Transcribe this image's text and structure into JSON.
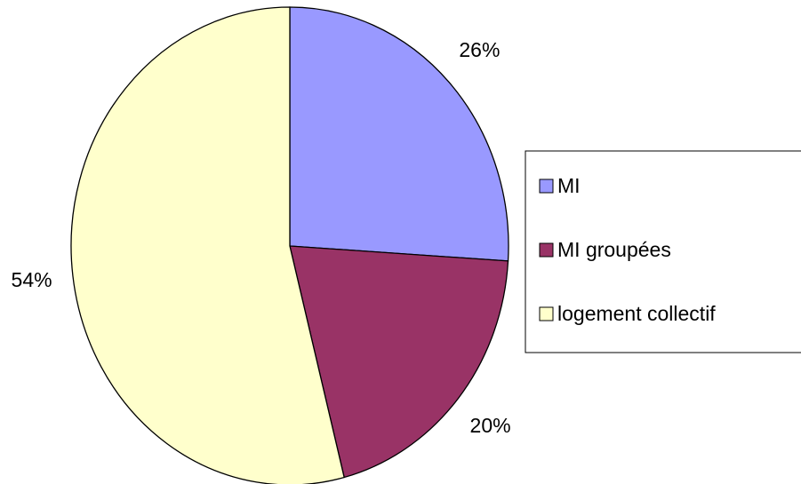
{
  "chart_data": {
    "type": "pie",
    "categories": [
      "MI",
      "MI groupées",
      "logement collectif"
    ],
    "values": [
      26,
      20,
      54
    ],
    "value_labels": [
      "26%",
      "20%",
      "54%"
    ],
    "colors": [
      "#9999ff",
      "#993366",
      "#ffffcc"
    ],
    "legend": "right"
  }
}
